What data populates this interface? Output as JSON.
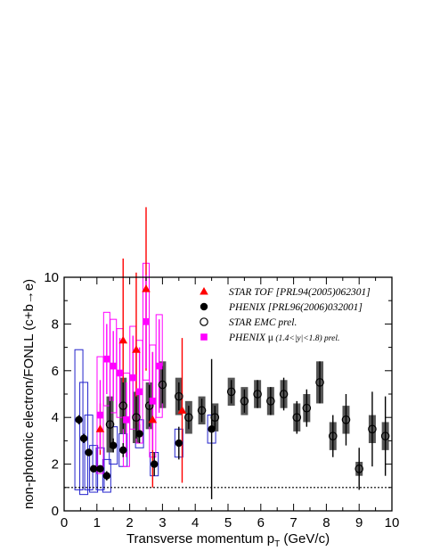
{
  "chart_data": {
    "type": "scatter",
    "xlabel": "Transverse momentum p",
    "xlabel_sub": "T",
    "xlabel_unit": " (GeV/c)",
    "ylabel": "non-photonic electron/FONLL (c+b→e)",
    "xlim": [
      0,
      10
    ],
    "ylim": [
      0,
      10
    ],
    "x_ticks": [
      "0",
      "1",
      "2",
      "3",
      "4",
      "5",
      "6",
      "7",
      "8",
      "9",
      "10"
    ],
    "y_ticks": [
      "0",
      "2",
      "4",
      "6",
      "8",
      "10"
    ],
    "reference_line": {
      "y": 1,
      "style": "dotted"
    },
    "legend": {
      "placement": "top-right"
    },
    "series": [
      {
        "name": "STAR TOF [PRL94(2005)062301]",
        "marker": "triangle",
        "color": "#ff0000",
        "points": [
          {
            "x": 1.1,
            "y": 3.5,
            "err": 1.1,
            "sys": 0.5
          },
          {
            "x": 1.8,
            "y": 7.3,
            "err": 3.5,
            "sys": 1.0
          },
          {
            "x": 2.2,
            "y": 6.9,
            "err": 3.3,
            "sys": 1.0
          },
          {
            "x": 2.5,
            "y": 9.5,
            "err": 3.5,
            "sys": 1.0
          },
          {
            "x": 2.7,
            "y": 3.9,
            "err": 2.9,
            "sys": 0.8
          },
          {
            "x": 3.6,
            "y": 4.3,
            "err": 3.1,
            "sys": 0.8
          }
        ]
      },
      {
        "name": "PHENIX [PRL96(2006)032001]",
        "marker": "circle-filled",
        "color": "#000000",
        "points": [
          {
            "x": 0.45,
            "y": 3.9,
            "err": 0.2,
            "sys": 3.0
          },
          {
            "x": 0.6,
            "y": 3.1,
            "err": 0.2,
            "sys": 2.4
          },
          {
            "x": 0.75,
            "y": 2.5,
            "err": 0.15,
            "sys": 1.6
          },
          {
            "x": 0.9,
            "y": 1.8,
            "err": 0.15,
            "sys": 1.0
          },
          {
            "x": 1.1,
            "y": 1.8,
            "err": 0.15,
            "sys": 0.9
          },
          {
            "x": 1.3,
            "y": 1.5,
            "err": 0.2,
            "sys": 0.7
          },
          {
            "x": 1.5,
            "y": 2.8,
            "err": 0.3,
            "sys": 0.8
          },
          {
            "x": 1.8,
            "y": 2.6,
            "err": 0.3,
            "sys": 0.7
          },
          {
            "x": 2.3,
            "y": 3.3,
            "err": 0.4,
            "sys": 0.6
          },
          {
            "x": 2.75,
            "y": 2.0,
            "err": 0.5,
            "sys": 0.5
          },
          {
            "x": 3.5,
            "y": 2.9,
            "err": 0.7,
            "sys": 0.6
          },
          {
            "x": 4.5,
            "y": 3.5,
            "err": 3.0,
            "sys": 0.6
          }
        ]
      },
      {
        "name": "STAR EMC prel.",
        "marker": "circle-open",
        "color": "#000000",
        "points": [
          {
            "x": 1.4,
            "y": 3.7,
            "err": 1.0,
            "sys": 1.2
          },
          {
            "x": 1.8,
            "y": 4.5,
            "err": 1.0,
            "sys": 1.2
          },
          {
            "x": 2.2,
            "y": 4.0,
            "err": 0.9,
            "sys": 1.1
          },
          {
            "x": 2.6,
            "y": 4.5,
            "err": 0.9,
            "sys": 1.0
          },
          {
            "x": 3.0,
            "y": 5.4,
            "err": 0.8,
            "sys": 1.0
          },
          {
            "x": 3.5,
            "y": 4.9,
            "err": 0.6,
            "sys": 0.8
          },
          {
            "x": 3.8,
            "y": 4.0,
            "err": 0.5,
            "sys": 0.7
          },
          {
            "x": 4.2,
            "y": 4.3,
            "err": 0.5,
            "sys": 0.6
          },
          {
            "x": 4.6,
            "y": 4.0,
            "err": 0.5,
            "sys": 0.6
          },
          {
            "x": 5.1,
            "y": 5.1,
            "err": 0.5,
            "sys": 0.6
          },
          {
            "x": 5.5,
            "y": 4.7,
            "err": 0.5,
            "sys": 0.6
          },
          {
            "x": 5.9,
            "y": 5.0,
            "err": 0.6,
            "sys": 0.6
          },
          {
            "x": 6.3,
            "y": 4.7,
            "err": 0.6,
            "sys": 0.6
          },
          {
            "x": 6.7,
            "y": 5.0,
            "err": 0.7,
            "sys": 0.6
          },
          {
            "x": 7.1,
            "y": 4.0,
            "err": 0.7,
            "sys": 0.6
          },
          {
            "x": 7.4,
            "y": 4.4,
            "err": 0.8,
            "sys": 0.6
          },
          {
            "x": 7.8,
            "y": 5.5,
            "err": 0.9,
            "sys": 0.9
          },
          {
            "x": 8.2,
            "y": 3.2,
            "err": 0.9,
            "sys": 0.6
          },
          {
            "x": 8.6,
            "y": 3.9,
            "err": 1.1,
            "sys": 0.6
          },
          {
            "x": 9.0,
            "y": 1.8,
            "err": 0.9,
            "sys": 0.3
          },
          {
            "x": 9.4,
            "y": 3.5,
            "err": 1.6,
            "sys": 0.6
          },
          {
            "x": 9.8,
            "y": 3.2,
            "err": 1.7,
            "sys": 0.6
          }
        ]
      },
      {
        "name_parts": [
          "PHENIX ",
          "μ",
          " (1.4<|",
          "y",
          "|<1.8) prel."
        ],
        "marker": "square",
        "color": "#ff00ff",
        "points": [
          {
            "x": 1.1,
            "y": 4.1,
            "err": 1.5,
            "sys": 2.5
          },
          {
            "x": 1.3,
            "y": 6.5,
            "err": 1.5,
            "sys": 2.0
          },
          {
            "x": 1.5,
            "y": 6.2,
            "err": 1.5,
            "sys": 2.0
          },
          {
            "x": 1.7,
            "y": 5.9,
            "err": 1.5,
            "sys": 1.9
          },
          {
            "x": 1.9,
            "y": 3.9,
            "err": 1.6,
            "sys": 2.0
          },
          {
            "x": 2.1,
            "y": 5.7,
            "err": 1.8,
            "sys": 2.2
          },
          {
            "x": 2.3,
            "y": 5.1,
            "err": 1.9,
            "sys": 2.2
          },
          {
            "x": 2.5,
            "y": 8.1,
            "err": 2.0,
            "sys": 2.5
          },
          {
            "x": 2.7,
            "y": 4.7,
            "err": 2.1,
            "sys": 2.4
          },
          {
            "x": 2.9,
            "y": 6.2,
            "err": 2.0,
            "sys": 2.2
          }
        ]
      }
    ]
  }
}
